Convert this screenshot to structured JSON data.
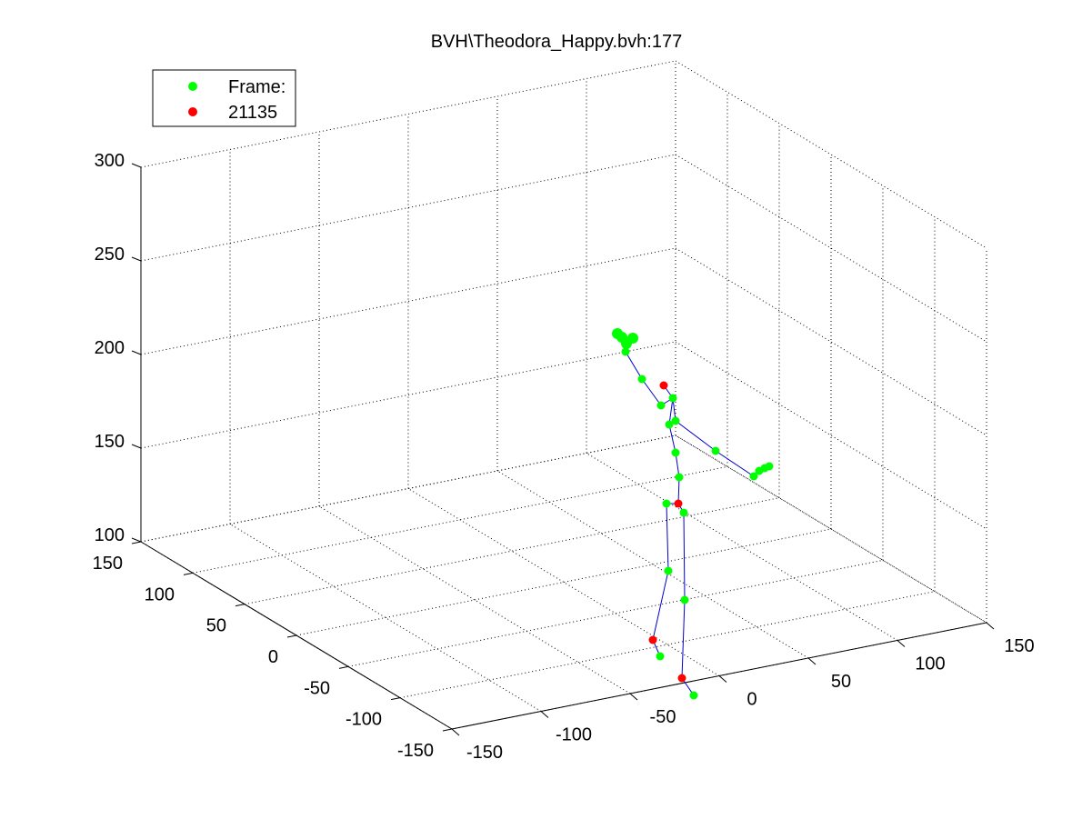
{
  "chart_data": {
    "type": "scatter",
    "title": "BVH\\Theodora_Happy.bvh:177",
    "legend": {
      "placement": "top-left",
      "entries": [
        {
          "label": "Frame:",
          "color": "#00ff00"
        },
        {
          "label": "21135",
          "color": "#ff0000"
        }
      ]
    },
    "axes": {
      "x_ticks": [
        "-150",
        "-100",
        "-50",
        "0",
        "50",
        "100",
        "150"
      ],
      "y_ticks": [
        "-150",
        "-100",
        "-50",
        "0",
        "50",
        "100",
        "150"
      ],
      "z_ticks": [
        "100",
        "150",
        "200",
        "250",
        "300"
      ],
      "xlim": [
        -150,
        150
      ],
      "ylim": [
        -150,
        150
      ],
      "zlim": [
        100,
        300
      ],
      "grid": true,
      "box": "3d-dotted"
    },
    "colors": {
      "joint": "#00ff00",
      "highlight": "#ff0000",
      "bone": "#0000cc",
      "grid": "#000000"
    }
  }
}
